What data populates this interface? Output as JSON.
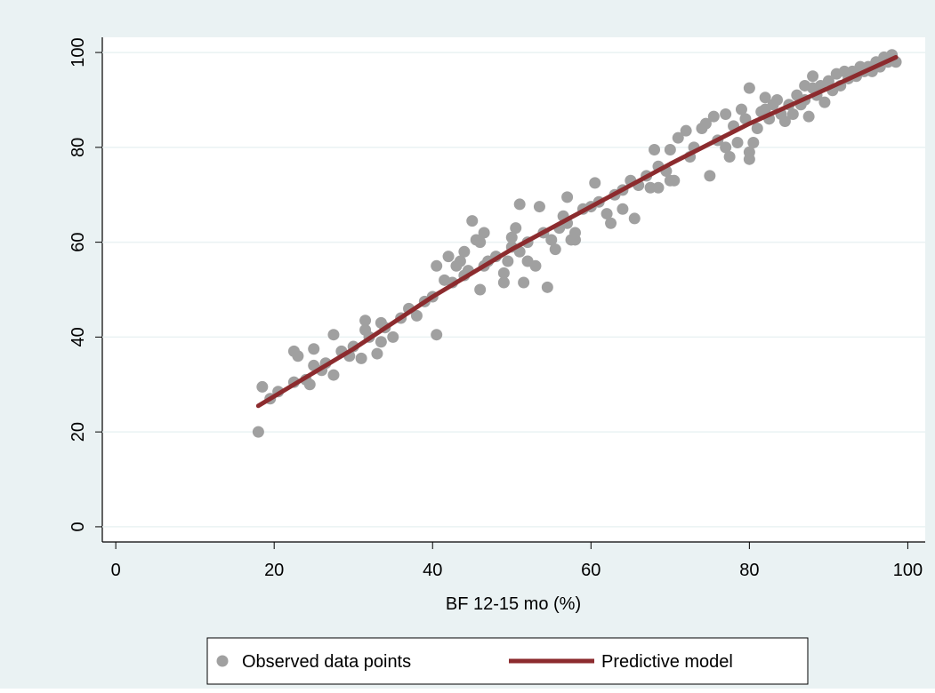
{
  "chart_data": {
    "type": "scatter",
    "x_label": "BF 12-15 mo (%)",
    "xlim": [
      -1.7,
      102.2
    ],
    "xticks": [
      0,
      20,
      40,
      60,
      80,
      100
    ],
    "ylim": [
      -3.2,
      103.2
    ],
    "yticks": [
      0,
      20,
      40,
      60,
      80,
      100
    ],
    "grid": true,
    "legend": "bottom",
    "series": [
      {
        "name": "Observed data points",
        "type": "scatter",
        "color": "#a0a0a0",
        "x": [
          18,
          18.5,
          19.5,
          20.5,
          22.5,
          23,
          22.5,
          24,
          24.5,
          25,
          25,
          26,
          26.5,
          27.5,
          27.5,
          28.5,
          29.5,
          30,
          31,
          31.5,
          31.5,
          32,
          33,
          33.5,
          33.5,
          34,
          35,
          36,
          37,
          38,
          39,
          40,
          40.5,
          40.5,
          41.5,
          42,
          42.5,
          43,
          43.5,
          44,
          44,
          44.5,
          45,
          45.5,
          46,
          46,
          46.5,
          46.5,
          47,
          48,
          49,
          49,
          49.5,
          50,
          50,
          50.5,
          51,
          51,
          51.5,
          52,
          52,
          53,
          53.5,
          54,
          54.5,
          55,
          55.5,
          56,
          56.5,
          57,
          57,
          57.5,
          58,
          58,
          59,
          60,
          60.5,
          61,
          62,
          62.5,
          63,
          64,
          64,
          65,
          65.5,
          66,
          67,
          67.5,
          68,
          68.5,
          68.5,
          69.5,
          70,
          70,
          70.5,
          71,
          72,
          72.5,
          73,
          74,
          74.5,
          75,
          75.5,
          76,
          77,
          77,
          77.5,
          78,
          78.5,
          79,
          79.5,
          80,
          80,
          80,
          80.5,
          81,
          81.5,
          82,
          82,
          82.5,
          83,
          83.5,
          84,
          84.5,
          85,
          85.5,
          86,
          86.5,
          87,
          87,
          87.5,
          88,
          88,
          88.5,
          89,
          89.5,
          90,
          90.5,
          91,
          91.5,
          92,
          92.5,
          93,
          93.5,
          94,
          94.5,
          95,
          95.5,
          96,
          96.5,
          97,
          97.5,
          98,
          98.5
        ],
        "values": [
          20,
          29.5,
          27,
          28.5,
          37,
          36,
          30.5,
          31,
          30,
          34,
          37.5,
          33,
          34.5,
          40.5,
          32,
          37,
          36,
          38,
          35.5,
          43.5,
          41.5,
          40,
          36.5,
          43,
          39,
          42,
          40,
          44,
          46,
          44.5,
          47.5,
          48.5,
          40.5,
          55,
          52,
          57,
          51.5,
          55,
          56,
          53,
          58,
          54,
          64.5,
          60.5,
          50,
          60,
          62,
          55,
          56,
          57,
          53.5,
          51.5,
          56,
          59,
          61,
          63,
          68,
          58,
          51.5,
          60,
          56,
          55,
          67.5,
          62,
          50.5,
          60.5,
          58.5,
          63,
          65.5,
          69.5,
          64,
          60.5,
          62,
          60.5,
          67,
          67.5,
          72.5,
          68.5,
          66,
          64,
          70,
          71,
          67,
          73,
          65,
          72,
          74,
          71.5,
          79.5,
          76,
          71.5,
          75,
          79.5,
          73,
          73,
          82,
          83.5,
          78,
          80,
          84,
          85,
          74,
          86.5,
          81.5,
          87,
          80,
          78,
          84.5,
          81,
          88,
          86,
          92.5,
          77.5,
          79,
          81,
          84,
          87.5,
          90.5,
          88,
          86,
          89,
          90,
          87,
          85.5,
          89,
          87,
          91,
          89,
          93,
          90,
          86.5,
          92.5,
          95,
          91,
          93,
          89.5,
          94,
          92,
          95.5,
          93,
          96,
          94.5,
          96,
          95,
          97,
          96,
          97,
          96,
          98,
          97,
          99,
          98,
          99.5,
          98
        ]
      },
      {
        "name": "Predictive model",
        "type": "line",
        "color": "#8c2b2e",
        "x": [
          18,
          30,
          40,
          50,
          60,
          70,
          80,
          90,
          98.5
        ],
        "values": [
          25.5,
          37.5,
          48.5,
          58.5,
          67.5,
          76.5,
          85,
          92.5,
          99
        ]
      }
    ]
  }
}
